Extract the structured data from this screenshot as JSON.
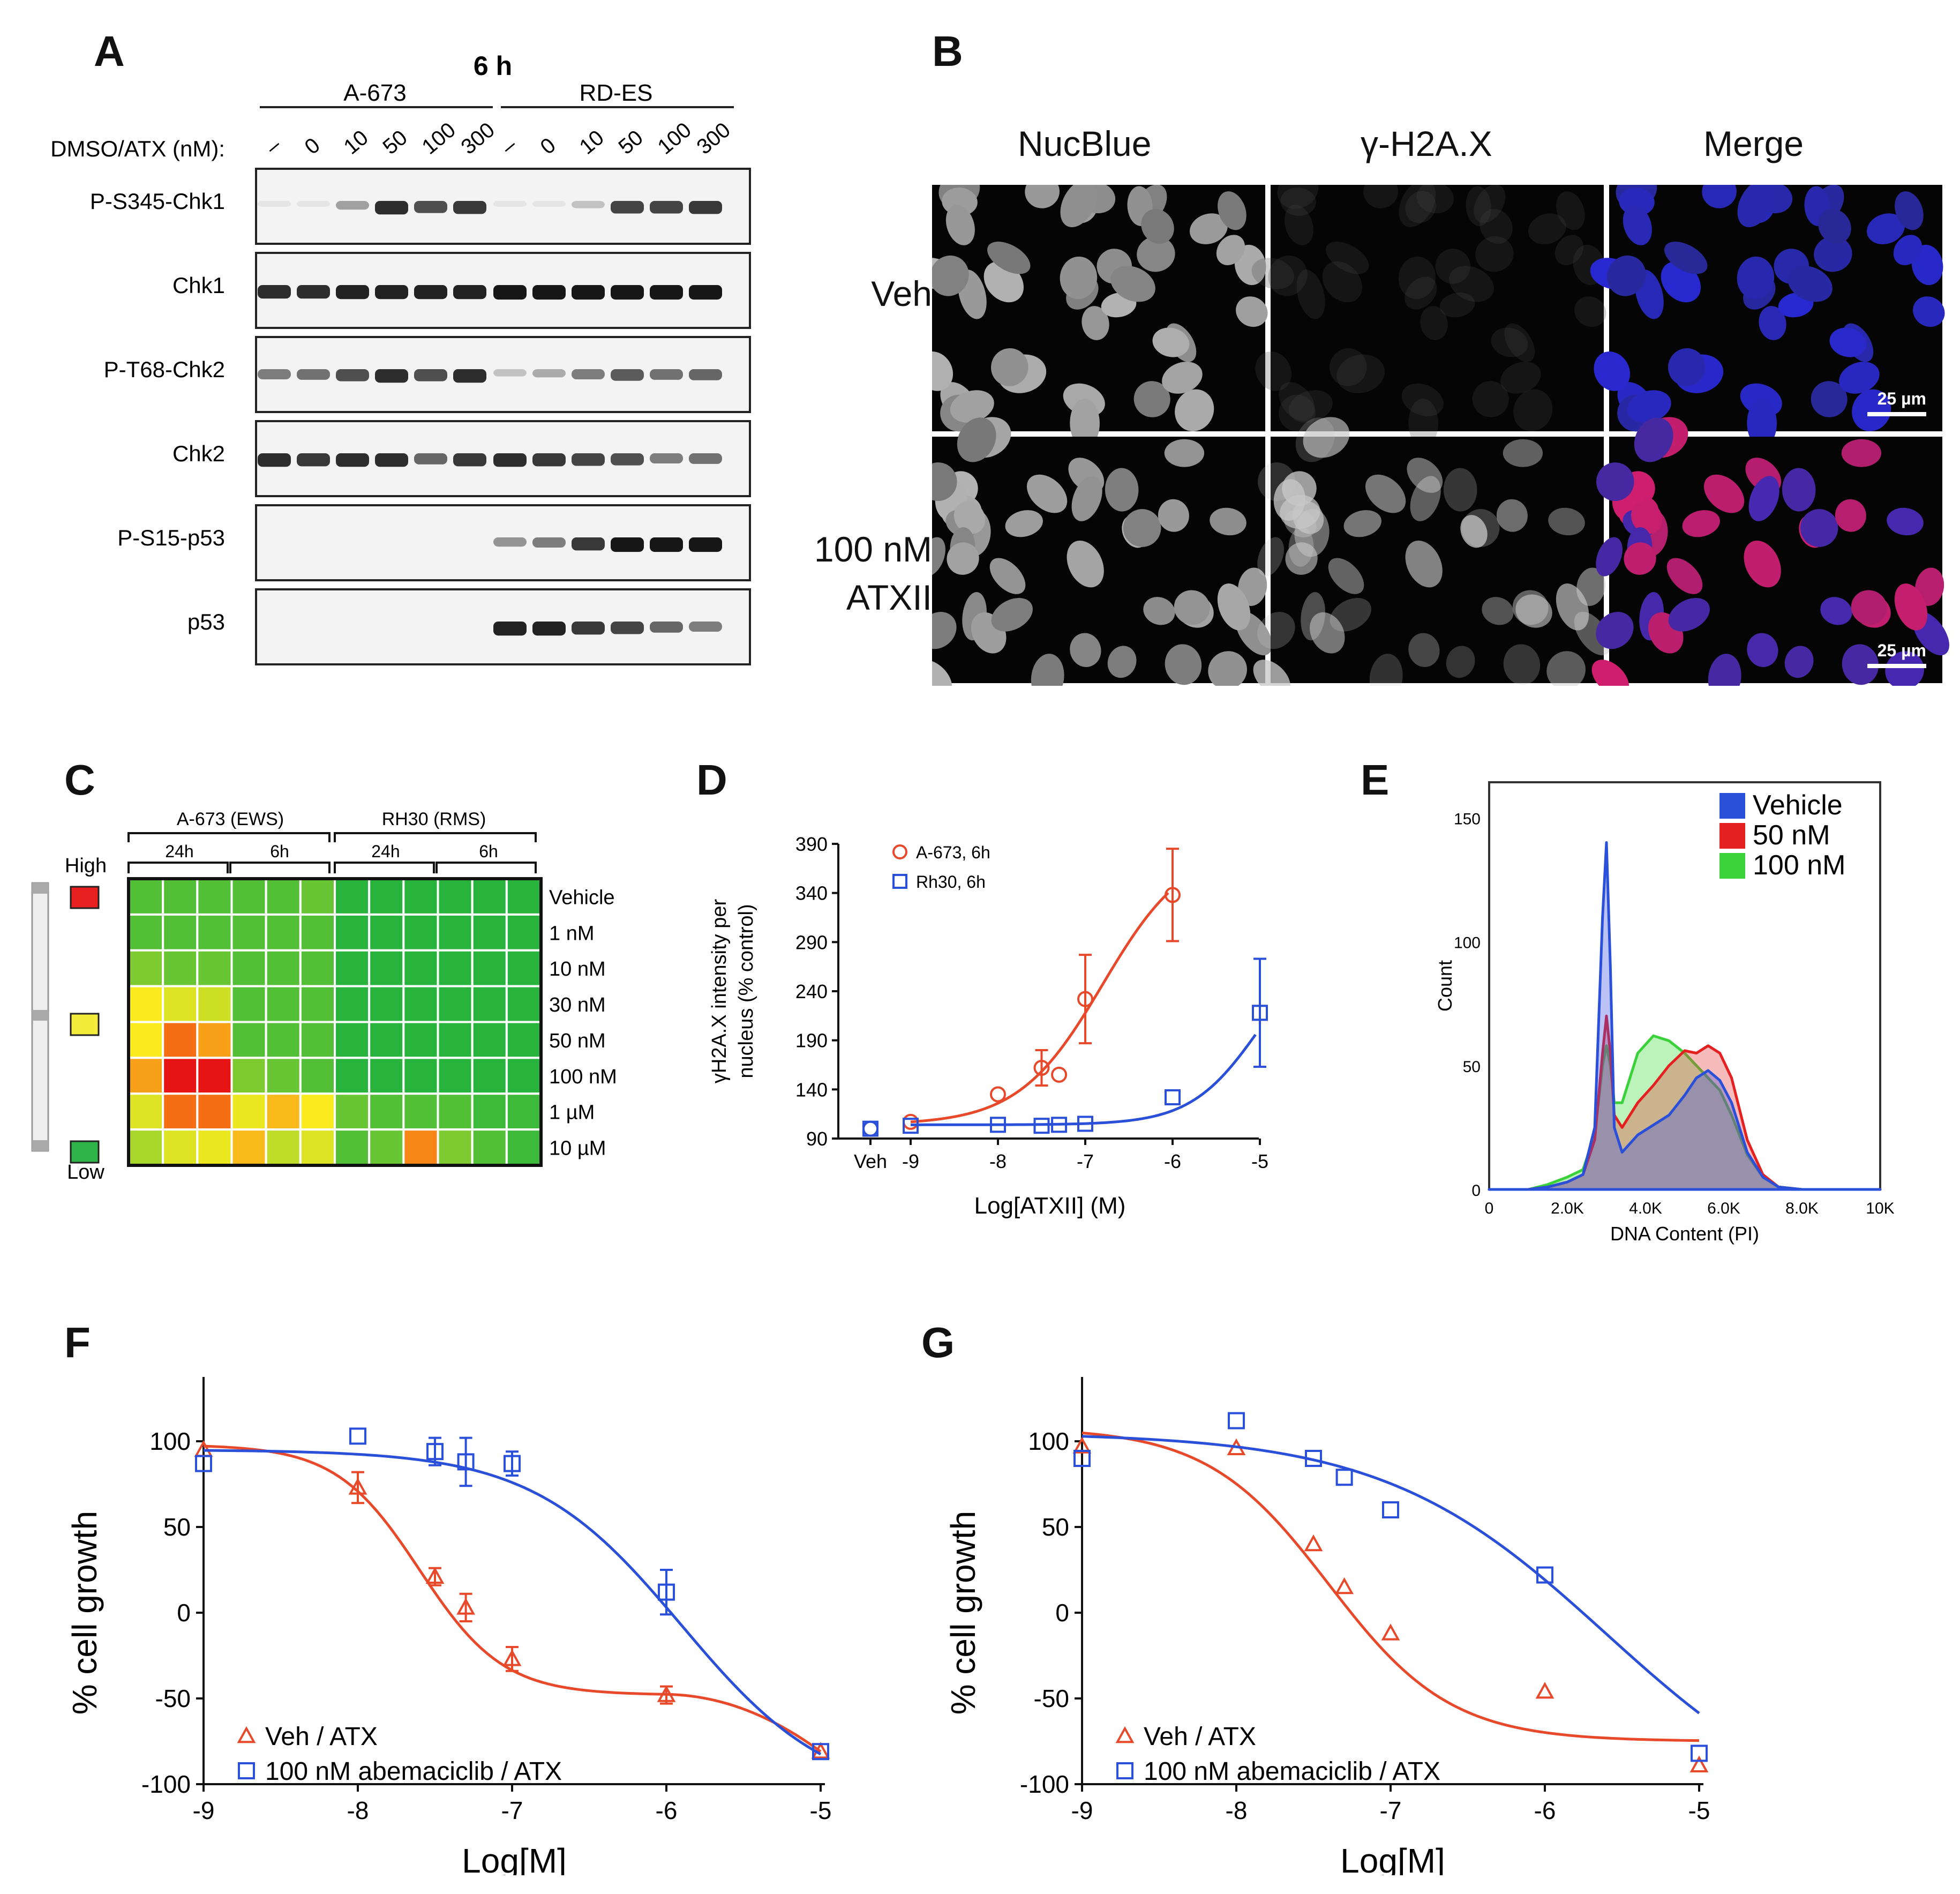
{
  "panel_labels": [
    "A",
    "B",
    "C",
    "D",
    "E",
    "F",
    "G"
  ],
  "panelA": {
    "time": "6 h",
    "groups": [
      "A-673",
      "RD-ES"
    ],
    "dose_label": "DMSO/ATX (nM):",
    "doses": [
      "–",
      "0",
      "10",
      "50",
      "100",
      "300",
      "–",
      "0",
      "10",
      "50",
      "100",
      "300"
    ],
    "rows": [
      {
        "name": "P-S345-Chk1",
        "intensity": [
          0.05,
          0.05,
          0.35,
          0.85,
          0.7,
          0.8,
          0.05,
          0.05,
          0.2,
          0.75,
          0.75,
          0.8
        ]
      },
      {
        "name": "Chk1",
        "intensity": [
          0.85,
          0.85,
          0.9,
          0.9,
          0.9,
          0.9,
          0.95,
          0.95,
          0.95,
          0.95,
          0.95,
          0.95
        ]
      },
      {
        "name": "P-T68-Chk2",
        "intensity": [
          0.5,
          0.55,
          0.7,
          0.85,
          0.7,
          0.85,
          0.2,
          0.3,
          0.5,
          0.65,
          0.55,
          0.6
        ]
      },
      {
        "name": "Chk2",
        "intensity": [
          0.85,
          0.8,
          0.85,
          0.85,
          0.6,
          0.8,
          0.85,
          0.8,
          0.75,
          0.7,
          0.5,
          0.55
        ]
      },
      {
        "name": "P-S15-p53",
        "intensity": [
          0,
          0,
          0,
          0,
          0,
          0,
          0.4,
          0.5,
          0.8,
          0.95,
          0.95,
          0.95
        ]
      },
      {
        "name": "p53",
        "intensity": [
          0,
          0,
          0,
          0,
          0,
          0,
          0.9,
          0.9,
          0.8,
          0.75,
          0.6,
          0.5
        ]
      }
    ]
  },
  "panelB": {
    "columns": [
      "NucBlue",
      "γ-H2A.X",
      "Merge"
    ],
    "rows": [
      "Veh",
      "100 nM ATXII"
    ],
    "scale_bar": "25 µm"
  },
  "panelC": {
    "groups": [
      "A-673 (EWS)",
      "RH30 (RMS)"
    ],
    "times": [
      "24h",
      "6h",
      "24h",
      "6h"
    ],
    "legend": [
      "High",
      "Low"
    ],
    "legend_colors": [
      "#e82020",
      "#f4ec3a",
      "#2fb44a"
    ],
    "rows": [
      "Vehicle",
      "1 nM",
      "10 nM",
      "30 nM",
      "50 nM",
      "100 nM",
      "1 µM",
      "10 µM"
    ]
  },
  "panelD": {
    "ylabel": "γH2A.X intensity per nucleus (% control)",
    "xlabel": "Log[ATXII] (M)",
    "yticks": [
      "90",
      "140",
      "190",
      "240",
      "290",
      "340",
      "390"
    ],
    "xticks": [
      "Veh",
      "-9",
      "-8",
      "-7",
      "-6",
      "-5"
    ],
    "legend": [
      "A-673, 6h",
      "Rh30, 6h"
    ]
  },
  "panelE": {
    "ylabel": "Count",
    "xlabel": "DNA Content (PI)",
    "yticks": [
      "0",
      "50",
      "100",
      "150"
    ],
    "xticks": [
      "0",
      "2.0K",
      "4.0K",
      "6.0K",
      "8.0K",
      "10K"
    ],
    "legend": [
      "Vehicle",
      "50 nM",
      "100 nM"
    ]
  },
  "panelF": {
    "ylabel": "% cell growth",
    "xlabel": "Log[M]",
    "yticks": [
      "100",
      "50",
      "0",
      "-50",
      "-100"
    ],
    "xticks": [
      "-9",
      "-8",
      "-7",
      "-6",
      "-5"
    ],
    "legend": [
      "Veh / ATX",
      "100 nM abemaciclib / ATX"
    ]
  },
  "panelG": {
    "ylabel": "% cell growth",
    "xlabel": "Log[M]",
    "yticks": [
      "100",
      "50",
      "0",
      "-50",
      "-100"
    ],
    "xticks": [
      "-9",
      "-8",
      "-7",
      "-6",
      "-5"
    ],
    "legend": [
      "Veh / ATX",
      "100 nM abemaciclib / ATX"
    ]
  },
  "colors": {
    "red": "#e8492a",
    "blue": "#2a4fd8",
    "green": "#3ad13a"
  },
  "chart_data": [
    {
      "type": "heatmap",
      "rows": [
        "Vehicle",
        "1 nM",
        "10 nM",
        "30 nM",
        "50 nM",
        "100 nM",
        "1 µM",
        "10 µM"
      ],
      "values": [
        [
          0.1,
          0.1,
          0.1,
          0.1,
          0.1,
          0.15,
          0,
          0,
          0,
          0,
          0,
          0
        ],
        [
          0.1,
          0.1,
          0.1,
          0.1,
          0.1,
          0.1,
          0,
          0,
          0,
          0,
          0,
          0
        ],
        [
          0.2,
          0.15,
          0.15,
          0.1,
          0.1,
          0.1,
          0,
          0,
          0,
          0,
          0,
          0
        ],
        [
          0.55,
          0.45,
          0.4,
          0.1,
          0.1,
          0.1,
          0,
          0,
          0,
          0,
          0,
          0
        ],
        [
          0.55,
          0.8,
          0.7,
          0.1,
          0.1,
          0.1,
          0,
          0,
          0,
          0,
          0,
          0
        ],
        [
          0.7,
          1.0,
          1.0,
          0.2,
          0.15,
          0.1,
          0,
          0,
          0,
          0,
          0,
          0
        ],
        [
          0.45,
          0.8,
          0.8,
          0.5,
          0.65,
          0.55,
          0.15,
          0.1,
          0.1,
          0.1,
          0.05,
          0.05
        ],
        [
          0.3,
          0.45,
          0.5,
          0.65,
          0.35,
          0.45,
          0.1,
          0.15,
          0.75,
          0.2,
          0.1,
          0.05
        ]
      ]
    },
    {
      "type": "scatter",
      "series": [
        {
          "name": "A-673, 6h",
          "x": [
            "Veh",
            -9,
            -8,
            -7.5,
            -7.3,
            -7,
            -6
          ],
          "y": [
            100,
            107,
            135,
            162,
            155,
            232,
            338
          ],
          "err": [
            0,
            0,
            0,
            18,
            0,
            45,
            47
          ]
        },
        {
          "name": "Rh30, 6h",
          "x": [
            "Veh",
            -9,
            -8,
            -7.5,
            -7.3,
            -7,
            -6,
            -5
          ],
          "y": [
            100,
            103,
            104,
            103,
            104,
            105,
            132,
            218
          ],
          "err": [
            0,
            0,
            0,
            0,
            0,
            0,
            0,
            55
          ]
        }
      ]
    },
    {
      "type": "area",
      "series": [
        {
          "name": "Vehicle",
          "x": [
            0,
            1000,
            1500,
            2000,
            2400,
            2700,
            2900,
            3000,
            3100,
            3200,
            3400,
            3800,
            4200,
            4600,
            5000,
            5300,
            5600,
            5900,
            6200,
            6600,
            7000,
            7400,
            8000,
            10000
          ],
          "y": [
            0,
            0,
            1,
            3,
            6,
            25,
            110,
            140,
            90,
            25,
            15,
            22,
            26,
            30,
            38,
            45,
            48,
            44,
            35,
            15,
            5,
            1,
            0,
            0
          ]
        },
        {
          "name": "50 nM",
          "x": [
            0,
            1000,
            1500,
            2000,
            2400,
            2700,
            2900,
            3000,
            3100,
            3200,
            3400,
            3800,
            4200,
            4600,
            5000,
            5300,
            5600,
            5900,
            6200,
            6600,
            7000,
            7400,
            8000,
            10000
          ],
          "y": [
            0,
            0,
            1,
            3,
            6,
            20,
            55,
            70,
            55,
            30,
            25,
            35,
            42,
            50,
            56,
            55,
            58,
            55,
            45,
            20,
            6,
            1,
            0,
            0
          ]
        },
        {
          "name": "100 nM",
          "x": [
            0,
            1000,
            1500,
            2000,
            2400,
            2700,
            2900,
            3000,
            3100,
            3200,
            3400,
            3800,
            4200,
            4600,
            5000,
            5300,
            5600,
            5900,
            6200,
            6600,
            7000,
            7400,
            8000,
            10000
          ],
          "y": [
            0,
            0,
            2,
            5,
            8,
            22,
            50,
            58,
            50,
            35,
            35,
            55,
            62,
            60,
            55,
            50,
            45,
            40,
            30,
            14,
            5,
            1,
            0,
            0
          ]
        }
      ]
    },
    {
      "type": "scatter",
      "series": [
        {
          "name": "Veh / ATX",
          "x": [
            -9,
            -8,
            -7.5,
            -7.3,
            -7,
            -6,
            -5
          ],
          "y": [
            95,
            73,
            21,
            3,
            -27,
            -48,
            -81
          ],
          "err": [
            0,
            9,
            5,
            8,
            7,
            5,
            0
          ]
        },
        {
          "name": "100 nM abemaciclib / ATX",
          "x": [
            -9,
            -8,
            -7.5,
            -7.3,
            -7,
            -6,
            -5
          ],
          "y": [
            87,
            103,
            94,
            88,
            87,
            12,
            -81
          ],
          "err": [
            0,
            0,
            8,
            14,
            7,
            13,
            0
          ]
        }
      ]
    },
    {
      "type": "scatter",
      "series": [
        {
          "name": "Veh / ATX",
          "x": [
            -9,
            -8,
            -7.5,
            -7.3,
            -7,
            -6,
            -5
          ],
          "y": [
            97,
            96,
            40,
            15,
            -12,
            -46,
            -89
          ]
        },
        {
          "name": "100 nM abemaciclib / ATX",
          "x": [
            -9,
            -8,
            -7.5,
            -7.3,
            -7,
            -6,
            -5
          ],
          "y": [
            90,
            112,
            90,
            79,
            60,
            22,
            -82
          ]
        }
      ]
    }
  ]
}
